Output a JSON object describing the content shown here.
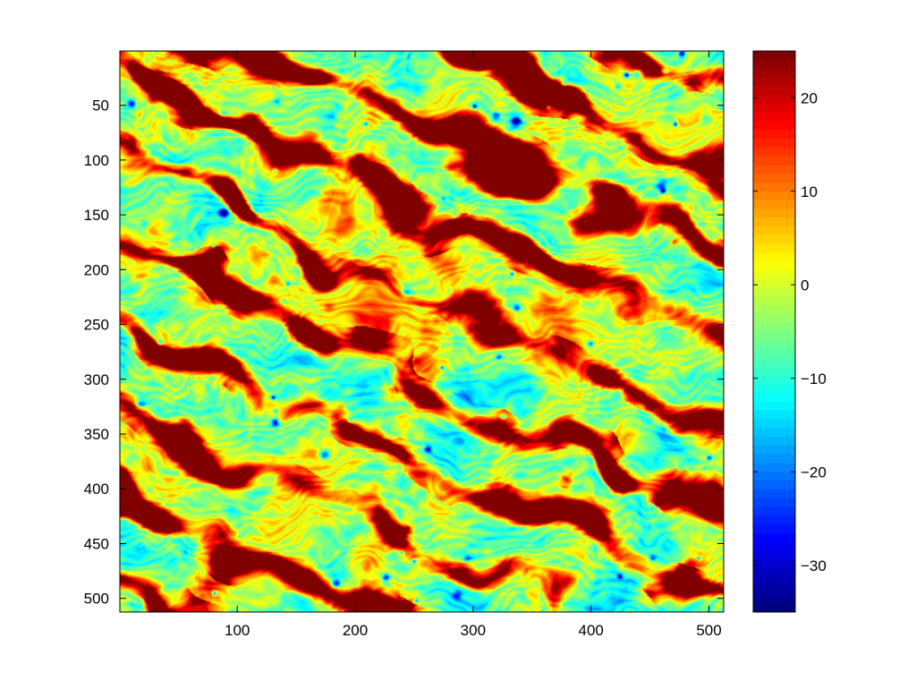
{
  "chart_data": {
    "type": "heatmap",
    "title": "",
    "xlabel": "",
    "ylabel": "",
    "colormap": "jet",
    "grid": false,
    "xlim": [
      1,
      512
    ],
    "ylim": [
      1,
      512
    ],
    "y_direction": "reverse",
    "x_ticks": [
      {
        "value": 100,
        "label": "100"
      },
      {
        "value": 200,
        "label": "200"
      },
      {
        "value": 300,
        "label": "300"
      },
      {
        "value": 400,
        "label": "400"
      },
      {
        "value": 500,
        "label": "500"
      }
    ],
    "y_ticks": [
      {
        "value": 50,
        "label": "50"
      },
      {
        "value": 100,
        "label": "100"
      },
      {
        "value": 150,
        "label": "150"
      },
      {
        "value": 200,
        "label": "200"
      },
      {
        "value": 250,
        "label": "250"
      },
      {
        "value": 300,
        "label": "300"
      },
      {
        "value": 350,
        "label": "350"
      },
      {
        "value": 400,
        "label": "400"
      },
      {
        "value": 450,
        "label": "450"
      },
      {
        "value": 500,
        "label": "500"
      }
    ],
    "colorbar": {
      "position": "right",
      "clim": [
        -35,
        25
      ],
      "ticks": [
        {
          "value": 20,
          "label": "20"
        },
        {
          "value": 10,
          "label": "10"
        },
        {
          "value": 0,
          "label": "0"
        },
        {
          "value": -10,
          "label": "−10"
        },
        {
          "value": -20,
          "label": "−20"
        },
        {
          "value": -30,
          "label": "−30"
        }
      ]
    },
    "value_range": [
      -35,
      25
    ],
    "background_level": -5
  }
}
